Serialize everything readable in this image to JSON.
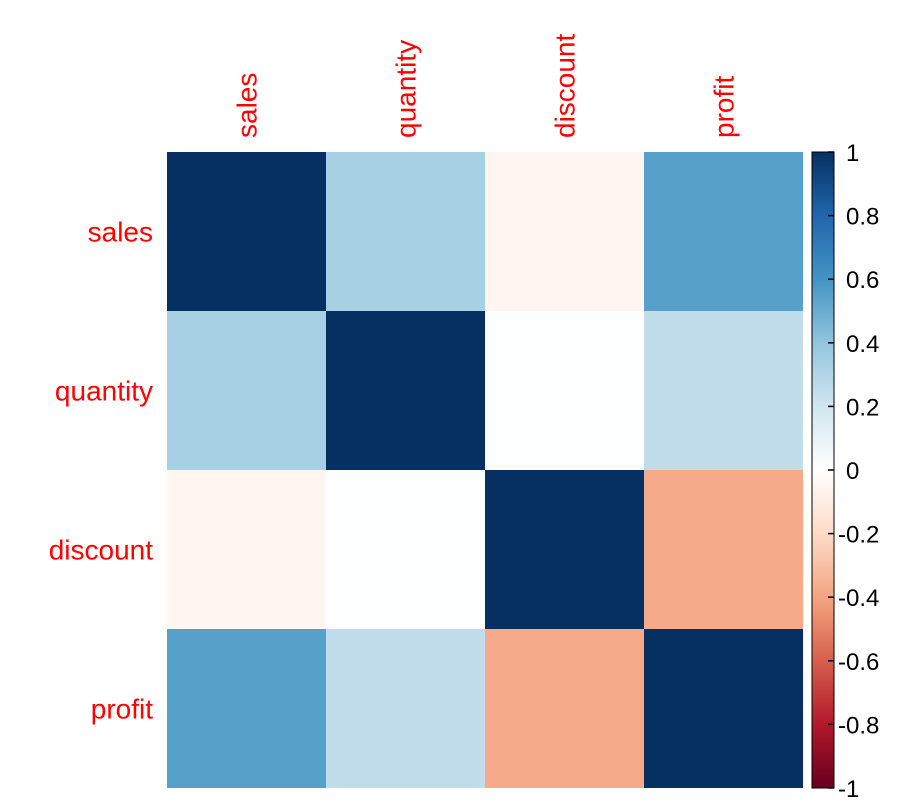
{
  "chart_data": {
    "type": "heatmap",
    "variables": [
      "sales",
      "quantity",
      "discount",
      "profit"
    ],
    "matrix": [
      [
        1.0,
        0.33,
        -0.05,
        0.55
      ],
      [
        0.33,
        1.0,
        0.01,
        0.25
      ],
      [
        -0.05,
        0.01,
        1.0,
        -0.38
      ],
      [
        0.55,
        0.25,
        -0.38,
        1.0
      ]
    ],
    "colorbar": {
      "range": [
        -1,
        1
      ],
      "ticks": [
        "1",
        "0.8",
        "0.6",
        "0.4",
        "0.2",
        "0",
        "-0.2",
        "-0.4",
        "-0.6",
        "-0.8",
        "-1"
      ]
    },
    "colors": {
      "label": "#ff0000",
      "scale": [
        "#67001f",
        "#b2182b",
        "#d6604d",
        "#f4a582",
        "#fddbc7",
        "#ffffff",
        "#d1e5f0",
        "#92c5de",
        "#4393c3",
        "#2166ac",
        "#053061"
      ]
    }
  }
}
